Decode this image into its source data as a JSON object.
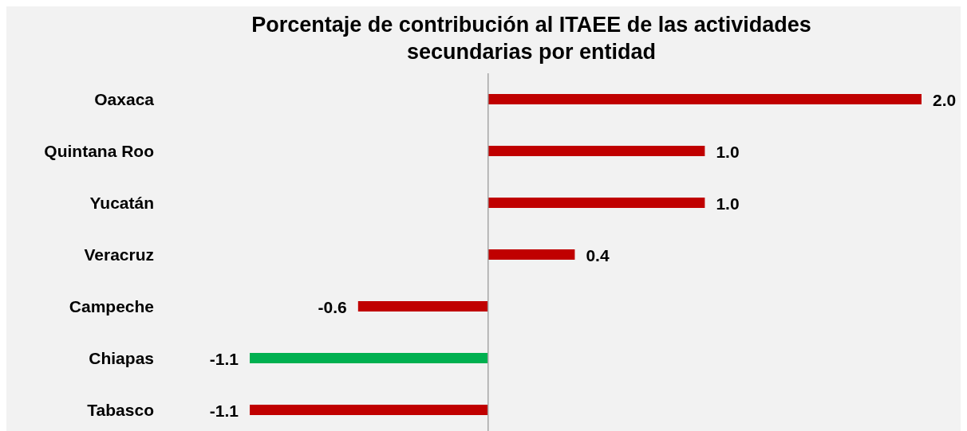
{
  "chart_data": {
    "type": "bar",
    "orientation": "horizontal",
    "title": "Porcentaje de contribución al ITAEE de las actividades secundarias por entidad",
    "categories": [
      "Oaxaca",
      "Quintana Roo",
      "Yucatán",
      "Veracruz",
      "Campeche",
      "Chiapas",
      "Tabasco"
    ],
    "values": [
      2.0,
      1.0,
      1.0,
      0.4,
      -0.6,
      -1.1,
      -1.1
    ],
    "value_labels": [
      "2.0",
      "1.0",
      "1.0",
      "0.4",
      "-0.6",
      "-1.1",
      "-1.1"
    ],
    "colors": [
      "#c00000",
      "#c00000",
      "#c00000",
      "#c00000",
      "#c00000",
      "#00b050",
      "#c00000"
    ],
    "grid": false,
    "legend": false
  }
}
